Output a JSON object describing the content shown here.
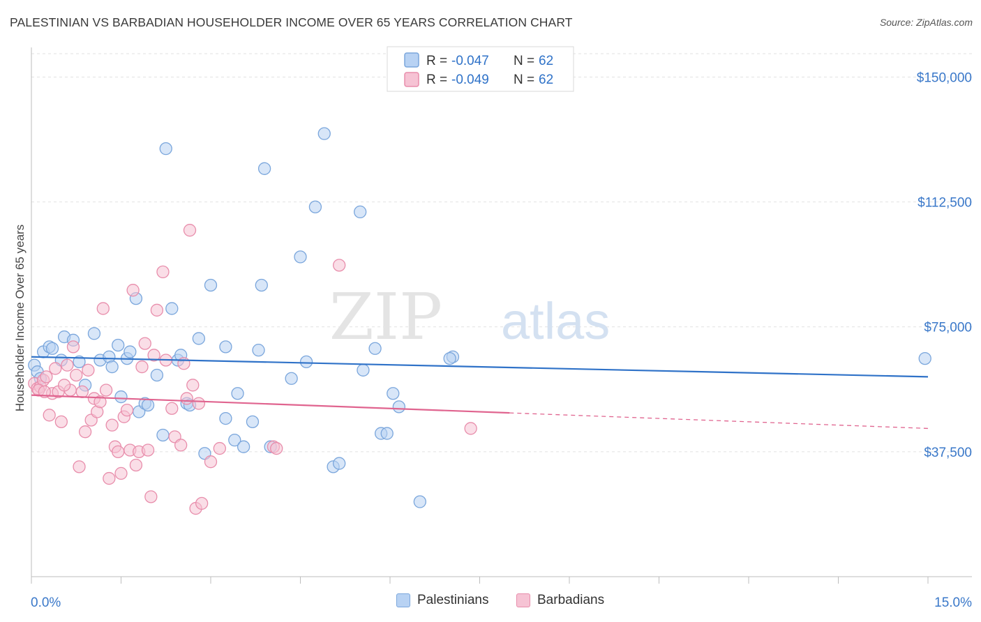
{
  "header": {
    "title": "PALESTINIAN VS BARBADIAN HOUSEHOLDER INCOME OVER 65 YEARS CORRELATION CHART",
    "source": "Source: ZipAtlas.com"
  },
  "watermark": {
    "zip": "ZIP",
    "atlas": "atlas"
  },
  "legend_top": [
    {
      "r_label": "R =",
      "r_value": "-0.047",
      "n_label": "N =",
      "n_value": "62"
    },
    {
      "r_label": "R =",
      "r_value": "-0.049",
      "n_label": "N =",
      "n_value": "62"
    }
  ],
  "legend_bottom": [
    "Palestinians",
    "Barbadians"
  ],
  "colors": {
    "blue_fill": "#b8d2f3",
    "blue_stroke": "#7aa6dc",
    "blue_line": "#2f72c8",
    "pink_fill": "#f6c3d4",
    "pink_stroke": "#e88dab",
    "pink_line": "#e0648f",
    "tick_label": "#3a78c9"
  },
  "chart_data": {
    "type": "scatter",
    "title": "PALESTINIAN VS BARBADIAN HOUSEHOLDER INCOME OVER 65 YEARS CORRELATION CHART",
    "xlabel": "",
    "ylabel": "Householder Income Over 65 years",
    "xlim": [
      0,
      15
    ],
    "ylim": [
      0,
      157000
    ],
    "x_tick_labels": [
      "0.0%",
      "15.0%"
    ],
    "y_ticks": [
      37500,
      75000,
      112500,
      150000
    ],
    "y_tick_labels": [
      "$37,500",
      "$75,000",
      "$112,500",
      "$150,000"
    ],
    "grid": true,
    "legend_position": "top-center",
    "series": [
      {
        "name": "Palestinians",
        "r": -0.047,
        "n": 62,
        "trend": {
          "x0": 0,
          "y0": 66000,
          "x1": 15,
          "y1": 60000,
          "dashed_from": null
        },
        "points": [
          [
            0.05,
            63500
          ],
          [
            0.1,
            61500
          ],
          [
            0.2,
            67500
          ],
          [
            0.3,
            69000
          ],
          [
            0.35,
            68500
          ],
          [
            0.5,
            65000
          ],
          [
            0.55,
            72000
          ],
          [
            0.7,
            71000
          ],
          [
            0.8,
            64500
          ],
          [
            0.9,
            57500
          ],
          [
            1.05,
            73000
          ],
          [
            1.15,
            65000
          ],
          [
            1.3,
            66000
          ],
          [
            1.35,
            63000
          ],
          [
            1.45,
            69500
          ],
          [
            1.5,
            54000
          ],
          [
            1.6,
            65500
          ],
          [
            1.65,
            67500
          ],
          [
            1.75,
            83500
          ],
          [
            1.8,
            49500
          ],
          [
            1.9,
            52000
          ],
          [
            1.95,
            51500
          ],
          [
            2.1,
            60500
          ],
          [
            2.2,
            42500
          ],
          [
            2.25,
            128500
          ],
          [
            2.35,
            80500
          ],
          [
            2.45,
            65000
          ],
          [
            2.5,
            66500
          ],
          [
            2.6,
            52000
          ],
          [
            2.65,
            51500
          ],
          [
            2.8,
            71500
          ],
          [
            2.9,
            37000
          ],
          [
            3.0,
            87500
          ],
          [
            3.25,
            69000
          ],
          [
            3.25,
            47500
          ],
          [
            3.4,
            41000
          ],
          [
            3.45,
            55000
          ],
          [
            3.55,
            39000
          ],
          [
            3.7,
            46500
          ],
          [
            3.8,
            68000
          ],
          [
            3.85,
            87500
          ],
          [
            3.9,
            122500
          ],
          [
            4.0,
            39000
          ],
          [
            4.35,
            59500
          ],
          [
            4.5,
            96000
          ],
          [
            4.6,
            64500
          ],
          [
            4.75,
            111000
          ],
          [
            4.9,
            133000
          ],
          [
            5.05,
            33000
          ],
          [
            5.15,
            34000
          ],
          [
            5.5,
            109500
          ],
          [
            5.55,
            62000
          ],
          [
            5.75,
            68500
          ],
          [
            5.85,
            43000
          ],
          [
            5.95,
            43000
          ],
          [
            6.05,
            55000
          ],
          [
            6.15,
            51000
          ],
          [
            6.5,
            22500
          ],
          [
            7.05,
            66000
          ],
          [
            7.0,
            65500
          ],
          [
            14.95,
            65500
          ],
          [
            0.15,
            59500
          ]
        ]
      },
      {
        "name": "Barbadians",
        "r": -0.049,
        "n": 62,
        "trend": {
          "x0": 0,
          "y0": 54500,
          "x1": 15,
          "y1": 44500,
          "dashed_from": 8.0
        },
        "points": [
          [
            0.05,
            58000
          ],
          [
            0.1,
            56500
          ],
          [
            0.15,
            57000
          ],
          [
            0.2,
            59000
          ],
          [
            0.25,
            60000
          ],
          [
            0.3,
            48500
          ],
          [
            0.35,
            55000
          ],
          [
            0.4,
            62500
          ],
          [
            0.45,
            55500
          ],
          [
            0.5,
            46500
          ],
          [
            0.6,
            63500
          ],
          [
            0.65,
            56000
          ],
          [
            0.7,
            69000
          ],
          [
            0.75,
            60500
          ],
          [
            0.8,
            33000
          ],
          [
            0.85,
            55500
          ],
          [
            0.9,
            43500
          ],
          [
            0.95,
            62000
          ],
          [
            1.0,
            47000
          ],
          [
            1.05,
            53500
          ],
          [
            1.1,
            49500
          ],
          [
            1.15,
            52500
          ],
          [
            1.2,
            80500
          ],
          [
            1.25,
            56000
          ],
          [
            1.3,
            29500
          ],
          [
            1.35,
            45500
          ],
          [
            1.4,
            39000
          ],
          [
            1.45,
            37500
          ],
          [
            1.5,
            31000
          ],
          [
            1.55,
            48000
          ],
          [
            1.6,
            50000
          ],
          [
            1.65,
            38000
          ],
          [
            1.7,
            86000
          ],
          [
            1.75,
            33500
          ],
          [
            1.8,
            37500
          ],
          [
            1.85,
            63000
          ],
          [
            1.9,
            70000
          ],
          [
            1.95,
            38000
          ],
          [
            2.0,
            24000
          ],
          [
            2.05,
            66500
          ],
          [
            2.1,
            80000
          ],
          [
            2.2,
            91500
          ],
          [
            2.25,
            65000
          ],
          [
            2.35,
            50500
          ],
          [
            2.4,
            42000
          ],
          [
            2.5,
            39500
          ],
          [
            2.55,
            64000
          ],
          [
            2.6,
            53500
          ],
          [
            2.65,
            104000
          ],
          [
            2.7,
            57500
          ],
          [
            2.75,
            20500
          ],
          [
            2.8,
            52000
          ],
          [
            2.85,
            22000
          ],
          [
            3.0,
            34500
          ],
          [
            3.15,
            38500
          ],
          [
            4.05,
            39000
          ],
          [
            4.1,
            38500
          ],
          [
            5.15,
            93500
          ],
          [
            7.35,
            44500
          ],
          [
            0.12,
            56000
          ],
          [
            0.22,
            55500
          ],
          [
            0.55,
            57500
          ]
        ]
      }
    ]
  }
}
